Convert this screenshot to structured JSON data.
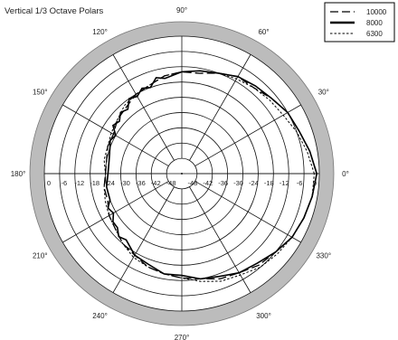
{
  "chart_data": {
    "type": "polar",
    "title": "Vertical 1/3 Octave Polars",
    "angle_unit": "degrees",
    "angle_ticks": [
      0,
      30,
      60,
      90,
      120,
      150,
      180,
      210,
      240,
      270,
      300,
      330
    ],
    "angle_tick_labels": [
      "0°",
      "30°",
      "60°",
      "90°",
      "120°",
      "150°",
      "180°",
      "210°",
      "240°",
      "270°",
      "300°",
      "330°"
    ],
    "r_range_db": [
      -54,
      0
    ],
    "r_ticks": [
      0,
      -6,
      -12,
      -18,
      -24,
      -30,
      -36,
      -42,
      -48
    ],
    "r_tick_labels": [
      "0",
      "-6",
      "-12",
      "-18",
      "-24",
      "-30",
      "-36",
      "-42",
      "-48"
    ],
    "grid": true,
    "legend_position": "top-right",
    "series": [
      {
        "name": "10000",
        "style": "long-dash",
        "points": [
          [
            0,
            -1
          ],
          [
            10,
            -3
          ],
          [
            20,
            -5
          ],
          [
            30,
            -6
          ],
          [
            40,
            -8
          ],
          [
            50,
            -10
          ],
          [
            60,
            -10
          ],
          [
            70,
            -12
          ],
          [
            80,
            -14
          ],
          [
            90,
            -14
          ],
          [
            100,
            -15
          ],
          [
            110,
            -17
          ],
          [
            120,
            -18
          ],
          [
            130,
            -20
          ],
          [
            140,
            -21
          ],
          [
            150,
            -23
          ],
          [
            160,
            -23
          ],
          [
            170,
            -24
          ],
          [
            180,
            -24
          ],
          [
            190,
            -23
          ],
          [
            200,
            -23
          ],
          [
            210,
            -21
          ],
          [
            220,
            -20
          ],
          [
            230,
            -18
          ],
          [
            240,
            -17
          ],
          [
            250,
            -15
          ],
          [
            260,
            -14
          ],
          [
            270,
            -13
          ],
          [
            280,
            -12
          ],
          [
            290,
            -10
          ],
          [
            300,
            -9
          ],
          [
            310,
            -7
          ],
          [
            320,
            -6
          ],
          [
            330,
            -4
          ],
          [
            340,
            -3
          ],
          [
            350,
            -2
          ],
          [
            360,
            -1
          ]
        ]
      },
      {
        "name": "8000",
        "style": "solid",
        "points": [
          [
            0,
            -1
          ],
          [
            10,
            -3
          ],
          [
            20,
            -5
          ],
          [
            30,
            -6
          ],
          [
            40,
            -8
          ],
          [
            50,
            -9
          ],
          [
            60,
            -10
          ],
          [
            70,
            -12
          ],
          [
            80,
            -13
          ],
          [
            90,
            -14
          ],
          [
            100,
            -16
          ],
          [
            105,
            -15
          ],
          [
            110,
            -18
          ],
          [
            115,
            -17
          ],
          [
            120,
            -19
          ],
          [
            125,
            -18
          ],
          [
            130,
            -21
          ],
          [
            135,
            -20
          ],
          [
            140,
            -22
          ],
          [
            145,
            -21
          ],
          [
            150,
            -24
          ],
          [
            155,
            -23
          ],
          [
            160,
            -24
          ],
          [
            170,
            -25
          ],
          [
            180,
            -25
          ],
          [
            190,
            -24
          ],
          [
            200,
            -24
          ],
          [
            205,
            -22
          ],
          [
            210,
            -23
          ],
          [
            215,
            -21
          ],
          [
            220,
            -21
          ],
          [
            225,
            -19
          ],
          [
            230,
            -20
          ],
          [
            240,
            -17
          ],
          [
            250,
            -16
          ],
          [
            260,
            -14
          ],
          [
            270,
            -14
          ],
          [
            280,
            -12
          ],
          [
            290,
            -11
          ],
          [
            300,
            -9
          ],
          [
            310,
            -8
          ],
          [
            320,
            -6
          ],
          [
            330,
            -4
          ],
          [
            340,
            -3
          ],
          [
            350,
            -2
          ],
          [
            360,
            -1
          ]
        ]
      },
      {
        "name": "6300",
        "style": "short-dash",
        "points": [
          [
            0,
            -2
          ],
          [
            10,
            -4
          ],
          [
            20,
            -6
          ],
          [
            30,
            -8
          ],
          [
            40,
            -9
          ],
          [
            50,
            -10
          ],
          [
            60,
            -11
          ],
          [
            70,
            -12
          ],
          [
            80,
            -13
          ],
          [
            90,
            -14
          ],
          [
            100,
            -15
          ],
          [
            110,
            -17
          ],
          [
            120,
            -18
          ],
          [
            130,
            -19
          ],
          [
            140,
            -21
          ],
          [
            150,
            -22
          ],
          [
            160,
            -23
          ],
          [
            170,
            -23
          ],
          [
            180,
            -24
          ],
          [
            190,
            -23
          ],
          [
            200,
            -22
          ],
          [
            210,
            -21
          ],
          [
            220,
            -20
          ],
          [
            230,
            -18
          ],
          [
            240,
            -16
          ],
          [
            250,
            -15
          ],
          [
            260,
            -14
          ],
          [
            270,
            -13
          ],
          [
            280,
            -11
          ],
          [
            290,
            -9
          ],
          [
            300,
            -8
          ],
          [
            310,
            -6
          ],
          [
            320,
            -5
          ],
          [
            330,
            -4
          ],
          [
            340,
            -3
          ],
          [
            350,
            -2
          ],
          [
            360,
            -2
          ]
        ]
      }
    ]
  }
}
